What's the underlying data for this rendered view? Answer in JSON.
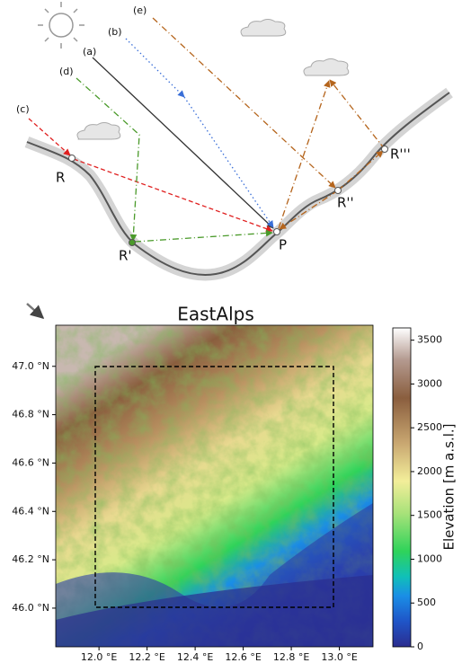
{
  "diagram": {
    "paths": [
      "(a)",
      "(b)",
      "(c)",
      "(d)",
      "(e)"
    ],
    "points": [
      "R",
      "R'",
      "R''",
      "R'''",
      "P"
    ]
  },
  "map": {
    "title": "EastAlps",
    "xlim": [
      11.82,
      13.14
    ],
    "ylim": [
      45.84,
      47.17
    ],
    "xticks": [
      {
        "value": 12.0,
        "label": "12.0 °E"
      },
      {
        "value": 12.2,
        "label": "12.2 °E"
      },
      {
        "value": 12.4,
        "label": "12.4 °E"
      },
      {
        "value": 12.6,
        "label": "12.6 °E"
      },
      {
        "value": 12.8,
        "label": "12.8 °E"
      },
      {
        "value": 13.0,
        "label": "13.0 °E"
      }
    ],
    "yticks": [
      {
        "value": 46.0,
        "label": "46.0 °N"
      },
      {
        "value": 46.2,
        "label": "46.2 °N"
      },
      {
        "value": 46.4,
        "label": "46.4 °N"
      },
      {
        "value": 46.6,
        "label": "46.6 °N"
      },
      {
        "value": 46.8,
        "label": "46.8 °N"
      },
      {
        "value": 47.0,
        "label": "47.0 °N"
      }
    ],
    "colorbar": {
      "label": "Elevation [m a.s.l.]",
      "lim": [
        0,
        3640
      ],
      "ticks": [
        0,
        500,
        1000,
        1500,
        2000,
        2500,
        3000,
        3500
      ]
    }
  }
}
